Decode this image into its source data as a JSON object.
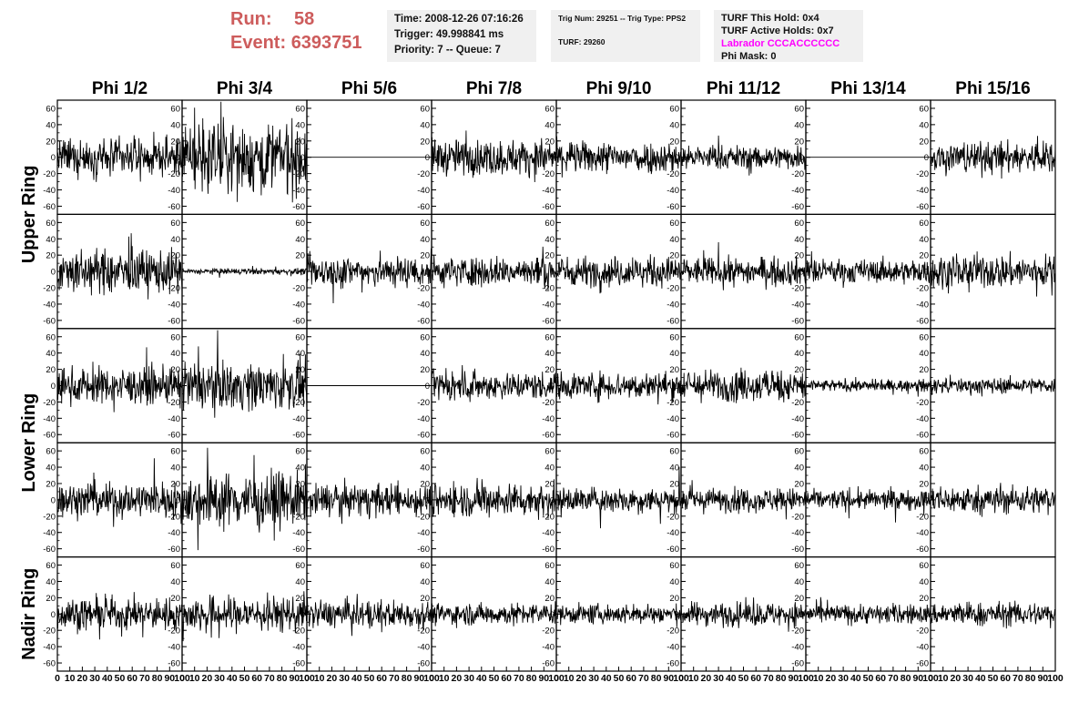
{
  "header": {
    "run_label": "Run:",
    "run_value": "58",
    "event_label": "Event:",
    "event_value": "6393751",
    "info_a": {
      "time": "Time: 2008-12-26 07:16:26",
      "trigger": "Trigger: 49.998841 ms",
      "priority": "Priority: 7 -- Queue: 7"
    },
    "info_b": {
      "trig": "Trig Num: 29251 -- Trig Type: PPS2",
      "turf": "TURF: 29260"
    },
    "info_c": {
      "hold": "TURF This Hold: 0x4",
      "active": "TURF Active Holds: 0x7",
      "labrador": "Labrador CCCACCCCCC",
      "phimask": "Phi Mask: 0"
    },
    "colors": {
      "run": "#cd5c5c",
      "labrador": "#ff00ff",
      "infobox_bg": "#f0f0f0"
    }
  },
  "chart_data": {
    "type": "line",
    "columns": [
      "Phi 1/2",
      "Phi 3/4",
      "Phi 5/6",
      "Phi 7/8",
      "Phi 9/10",
      "Phi 11/12",
      "Phi 13/14",
      "Phi 15/16"
    ],
    "row_groups": [
      "Upper Ring",
      "Lower Ring",
      "Nadir Ring"
    ],
    "rows": 5,
    "xlim": [
      0,
      100
    ],
    "ylim": [
      -70,
      70
    ],
    "x_ticks": [
      "0",
      "10",
      "20",
      "30",
      "40",
      "50",
      "60",
      "70",
      "80",
      "90",
      "100"
    ],
    "y_ticks": [
      "60",
      "40",
      "20",
      "0",
      "-20",
      "-40",
      "-60"
    ],
    "trace_color": "#000000",
    "amplitude_grid": [
      [
        18,
        36,
        0,
        18,
        16,
        12,
        0,
        16
      ],
      [
        22,
        3,
        16,
        15,
        15,
        14,
        12,
        17
      ],
      [
        18,
        24,
        0,
        14,
        14,
        16,
        6,
        8
      ],
      [
        18,
        28,
        16,
        17,
        13,
        12,
        10,
        14
      ],
      [
        16,
        18,
        14,
        11,
        10,
        12,
        10,
        12
      ]
    ]
  }
}
